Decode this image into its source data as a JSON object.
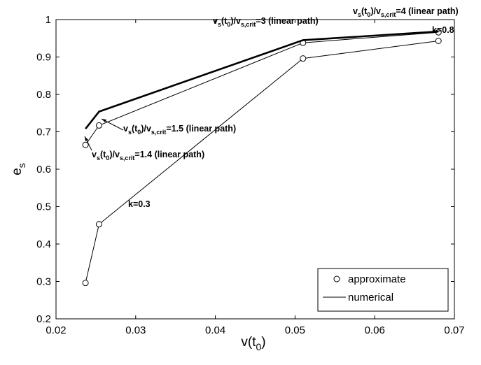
{
  "chart_data": {
    "type": "line",
    "xlabel": "v(t0)",
    "ylabel": "e s",
    "xlim": [
      0.02,
      0.07
    ],
    "ylim": [
      0.2,
      1.0
    ],
    "xticks": [
      "0.02",
      "0.03",
      "0.04",
      "0.05",
      "0.06",
      "0.07"
    ],
    "yticks": [
      "0.2",
      "0.3",
      "0.4",
      "0.5",
      "0.6",
      "0.7",
      "0.8",
      "0.9",
      "1"
    ],
    "grid": false,
    "legend": {
      "position": "bottom-right",
      "entries": [
        "approximate",
        "numerical"
      ]
    },
    "series": [
      {
        "name": "approximate",
        "style": "circle markers, thin line",
        "groups": [
          {
            "x": [
              0.0237,
              0.0254,
              0.051,
              0.068
            ],
            "y": [
              0.296,
              0.453,
              0.896,
              0.943
            ]
          },
          {
            "x": [
              0.0237,
              0.0254,
              0.051,
              0.068
            ],
            "y": [
              0.665,
              0.717,
              0.938,
              0.966
            ]
          }
        ]
      },
      {
        "name": "numerical",
        "style": "thick line",
        "groups": [
          {
            "x": [
              0.0237,
              0.0254,
              0.051,
              0.068
            ],
            "y": [
              0.708,
              0.754,
              0.945,
              0.968
            ]
          }
        ]
      }
    ],
    "annotations": [
      {
        "text": "k=0.8"
      },
      {
        "text": "k=0.3"
      },
      {
        "text": "vs(t0)/vs,crit=4 (linear path)"
      },
      {
        "text": "vs(t0)/vs,crit=3 (linear path)"
      },
      {
        "text": "vs(t0)/vs,crit=1.5 (linear path)"
      },
      {
        "text": "vs(t0)/vs,crit=1.4 (linear path)"
      }
    ],
    "colors": {
      "line": "#000000",
      "background": "#ffffff"
    }
  }
}
